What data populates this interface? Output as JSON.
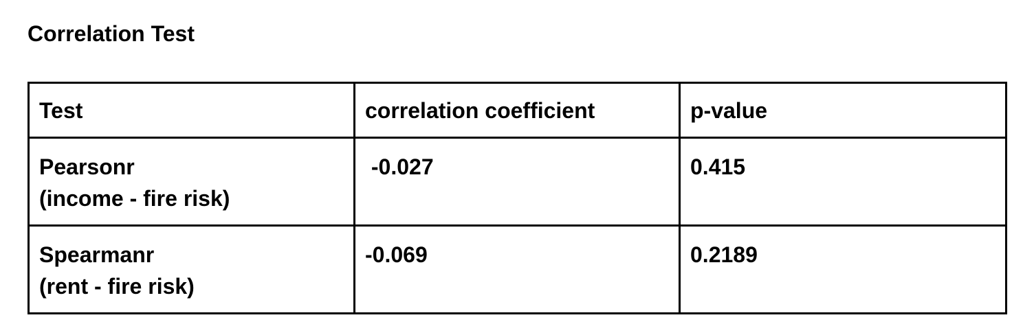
{
  "document": {
    "title": "Correlation Test"
  },
  "table": {
    "headers": [
      "Test",
      "correlation coefficient",
      "p-value"
    ],
    "rows": [
      {
        "test_name": "Pearsonr",
        "test_detail": "(income - fire risk)",
        "correlation_coefficient": " -0.027",
        "p_value": "0.415"
      },
      {
        "test_name": "Spearmanr",
        "test_detail": "(rent - fire risk)",
        "correlation_coefficient": "-0.069",
        "p_value": "0.2189"
      }
    ]
  }
}
